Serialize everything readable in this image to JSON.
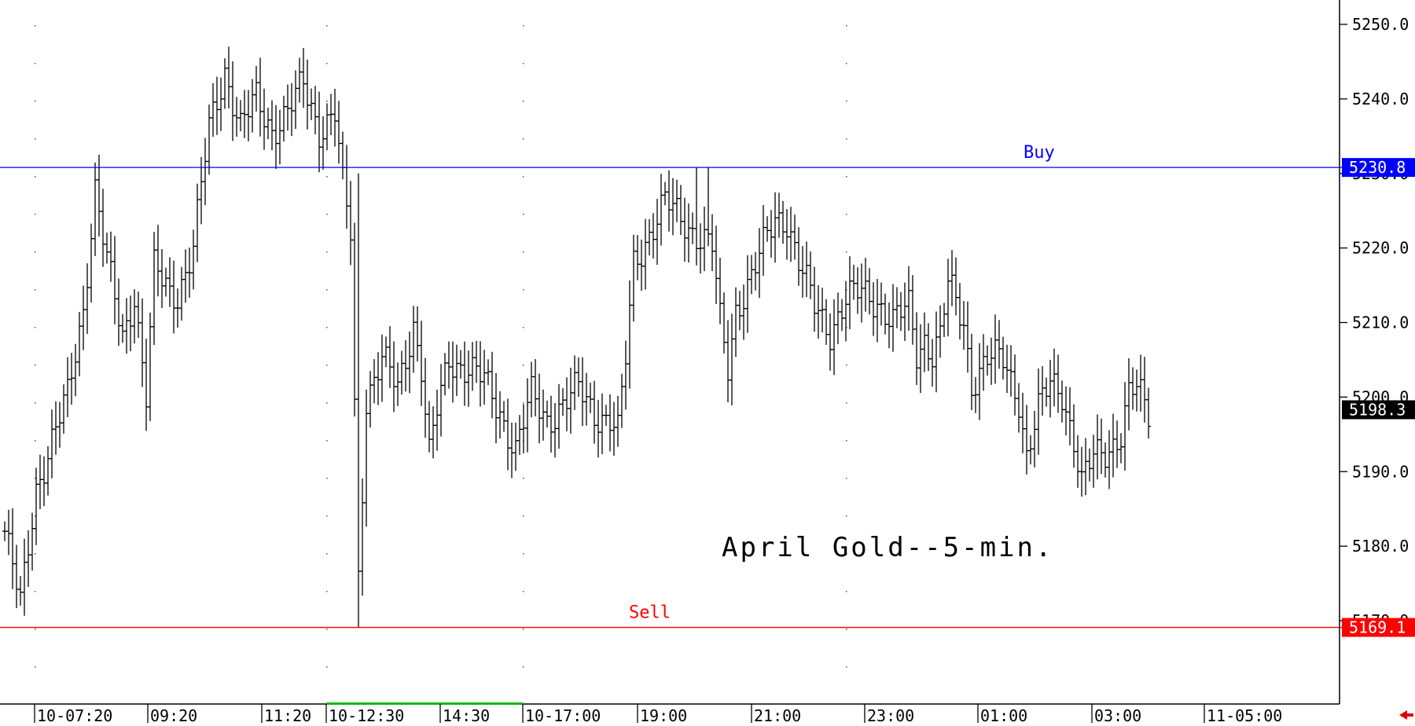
{
  "chart_data": {
    "type": "ohlc-bar",
    "title": "April Gold--5-min.",
    "ylim": [
      5158,
      5255
    ],
    "y_ticks": [
      5250.0,
      5240.0,
      5230.0,
      5220.0,
      5210.0,
      5200.0,
      5190.0,
      5180.0,
      5170.0
    ],
    "y_tick_labels": [
      "5250.0",
      "5240.0",
      "5230.0",
      "5220.0",
      "5210.0",
      "5200.0",
      "5190.0",
      "5180.0",
      "5170.0"
    ],
    "x_labels": [
      "10-07:20",
      "09:20",
      "11:20",
      "10-12:30",
      "14:30",
      "10-17:00",
      "19:00",
      "21:00",
      "23:00",
      "01:00",
      "03:00",
      "11-05:00"
    ],
    "levels": [
      {
        "label": "Buy",
        "value": 5230.8,
        "tag": "5230.8",
        "color": "#0000ff"
      },
      {
        "label": "Sell",
        "value": 5169.1,
        "tag": "5169.1",
        "color": "#ff0000"
      }
    ],
    "last_price": {
      "value": 5198.3,
      "tag": "5198.3"
    },
    "grid": "dotted",
    "keypoints": [
      [
        0,
        5182
      ],
      [
        4,
        5172
      ],
      [
        8,
        5188
      ],
      [
        12,
        5194
      ],
      [
        16,
        5200
      ],
      [
        20,
        5212
      ],
      [
        23,
        5228
      ],
      [
        26,
        5218
      ],
      [
        30,
        5208
      ],
      [
        33,
        5214
      ],
      [
        36,
        5200
      ],
      [
        38,
        5217
      ],
      [
        42,
        5214
      ],
      [
        44,
        5214
      ],
      [
        48,
        5220
      ],
      [
        52,
        5236
      ],
      [
        56,
        5244
      ],
      [
        60,
        5236
      ],
      [
        64,
        5240
      ],
      [
        68,
        5236
      ],
      [
        72,
        5238
      ],
      [
        76,
        5242
      ],
      [
        80,
        5236
      ],
      [
        84,
        5238
      ],
      [
        86,
        5228
      ],
      [
        88,
        5222
      ],
      [
        90,
        5176
      ],
      [
        92,
        5200
      ],
      [
        96,
        5205
      ],
      [
        100,
        5201
      ],
      [
        104,
        5210
      ],
      [
        106,
        5204
      ],
      [
        108,
        5192
      ],
      [
        110,
        5198
      ],
      [
        113,
        5205
      ],
      [
        118,
        5204
      ],
      [
        122,
        5202
      ],
      [
        126,
        5198
      ],
      [
        130,
        5193
      ],
      [
        134,
        5200
      ],
      [
        138,
        5197
      ],
      [
        142,
        5199
      ],
      [
        146,
        5201
      ],
      [
        150,
        5198
      ],
      [
        154,
        5197
      ],
      [
        156,
        5195
      ],
      [
        158,
        5205
      ],
      [
        160,
        5218
      ],
      [
        164,
        5222
      ],
      [
        168,
        5226
      ],
      [
        172,
        5224
      ],
      [
        176,
        5222
      ],
      [
        180,
        5220
      ],
      [
        182,
        5210
      ],
      [
        184,
        5204
      ],
      [
        186,
        5212
      ],
      [
        190,
        5216
      ],
      [
        193,
        5220
      ],
      [
        196,
        5224
      ],
      [
        199,
        5224
      ],
      [
        202,
        5218
      ],
      [
        206,
        5212
      ],
      [
        210,
        5209
      ],
      [
        214,
        5213
      ],
      [
        218,
        5214
      ],
      [
        222,
        5213
      ],
      [
        226,
        5210
      ],
      [
        230,
        5212
      ],
      [
        232,
        5206
      ],
      [
        234,
        5208
      ],
      [
        236,
        5206
      ],
      [
        238,
        5208
      ],
      [
        240,
        5215
      ],
      [
        244,
        5210
      ],
      [
        246,
        5202
      ],
      [
        250,
        5205
      ],
      [
        254,
        5205
      ],
      [
        258,
        5200
      ],
      [
        260,
        5192
      ],
      [
        263,
        5198
      ],
      [
        266,
        5202
      ],
      [
        269,
        5201
      ],
      [
        272,
        5194
      ],
      [
        274,
        5188
      ],
      [
        277,
        5192
      ],
      [
        280,
        5193
      ],
      [
        284,
        5195
      ],
      [
        286,
        5200
      ],
      [
        288,
        5201
      ],
      [
        291,
        5198
      ]
    ]
  }
}
